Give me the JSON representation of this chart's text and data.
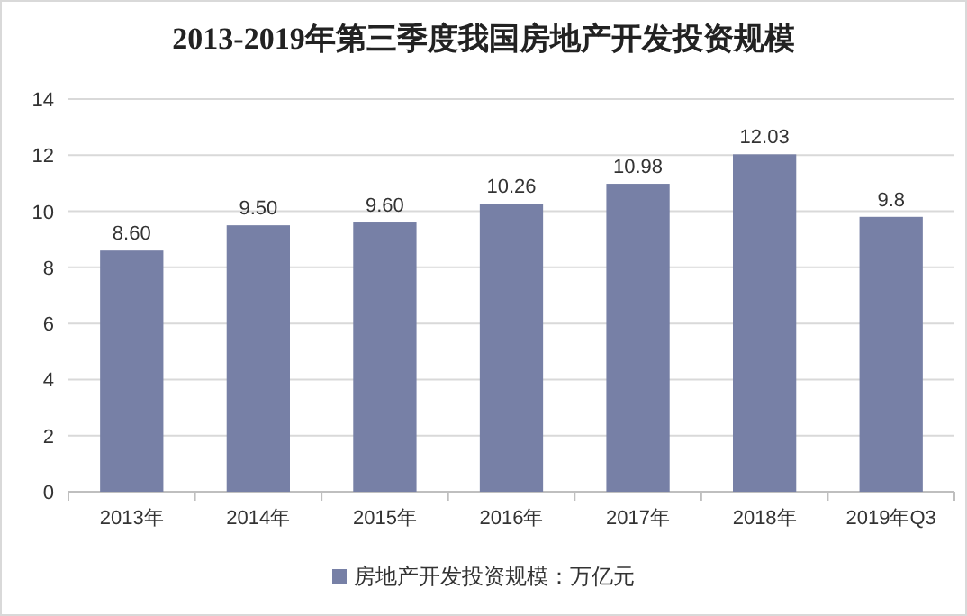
{
  "chart_data": {
    "type": "bar",
    "title": "2013-2019年第三季度我国房地产开发投资规模",
    "categories": [
      "2013年",
      "2014年",
      "2015年",
      "2016年",
      "2017年",
      "2018年",
      "2019年Q3"
    ],
    "series": [
      {
        "name": "房地产开发投资规模：万亿元",
        "color": "#7780a6",
        "values": [
          8.6,
          9.5,
          9.6,
          10.26,
          10.98,
          12.03,
          9.8
        ],
        "value_labels": [
          "8.60",
          "9.50",
          "9.60",
          "10.26",
          "10.98",
          "12.03",
          "9.8"
        ]
      }
    ],
    "ylim": [
      0,
      14
    ],
    "yticks": [
      0,
      2,
      4,
      6,
      8,
      10,
      12,
      14
    ],
    "grid": "y",
    "legend": "bottom"
  }
}
